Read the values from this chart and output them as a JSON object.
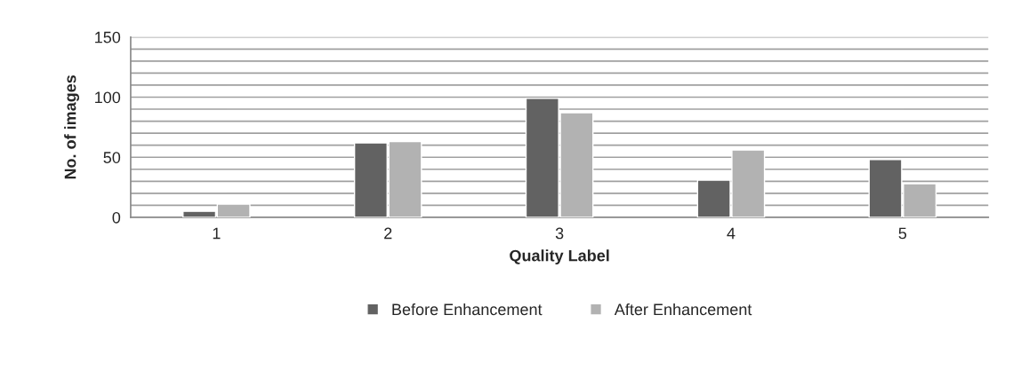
{
  "chart_data": {
    "type": "bar",
    "xlabel": "Quality Label",
    "ylabel": "No. of images",
    "categories": [
      "1",
      "2",
      "3",
      "4",
      "5"
    ],
    "series": [
      {
        "name": "Before Enhancement",
        "color": "#626262",
        "values": [
          5,
          62,
          99,
          31,
          48
        ]
      },
      {
        "name": "After Enhancement",
        "color": "#b2b2b2",
        "values": [
          11,
          63,
          87,
          56,
          28
        ]
      }
    ],
    "ylim": [
      0,
      150
    ],
    "yticks": [
      0,
      {
        "value": 10,
        "label": null
      },
      {
        "value": 20,
        "label": null
      },
      {
        "value": 30,
        "label": null
      },
      {
        "value": 40,
        "label": null
      },
      50,
      {
        "value": 60,
        "label": null
      },
      {
        "value": 70,
        "label": null
      },
      {
        "value": 80,
        "label": null
      },
      {
        "value": 90,
        "label": null
      },
      100,
      {
        "value": 110,
        "label": null
      },
      {
        "value": 120,
        "label": null
      },
      {
        "value": 130,
        "label": null
      },
      {
        "value": 140,
        "label": null
      },
      150
    ],
    "grid": "y",
    "legend": "bottom"
  }
}
